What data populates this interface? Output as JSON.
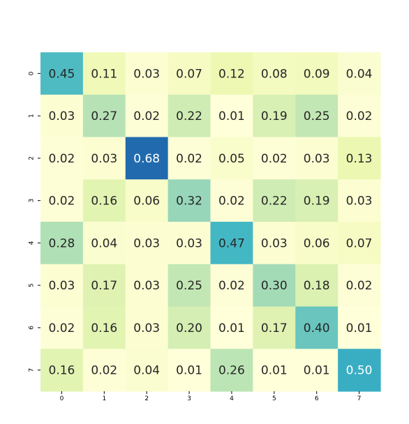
{
  "chart_data": {
    "type": "heatmap",
    "title": "",
    "xlabel": "",
    "ylabel": "",
    "x_labels": [
      "0",
      "1",
      "2",
      "3",
      "4",
      "5",
      "6",
      "7"
    ],
    "y_labels": [
      "0",
      "1",
      "2",
      "3",
      "4",
      "5",
      "6",
      "7"
    ],
    "values": [
      [
        0.45,
        0.11,
        0.03,
        0.07,
        0.12,
        0.08,
        0.09,
        0.04
      ],
      [
        0.03,
        0.27,
        0.02,
        0.22,
        0.01,
        0.19,
        0.25,
        0.02
      ],
      [
        0.02,
        0.03,
        0.68,
        0.02,
        0.05,
        0.02,
        0.03,
        0.13
      ],
      [
        0.02,
        0.16,
        0.06,
        0.32,
        0.02,
        0.22,
        0.19,
        0.03
      ],
      [
        0.28,
        0.04,
        0.03,
        0.03,
        0.47,
        0.03,
        0.06,
        0.07
      ],
      [
        0.03,
        0.17,
        0.03,
        0.25,
        0.02,
        0.3,
        0.18,
        0.02
      ],
      [
        0.02,
        0.16,
        0.03,
        0.2,
        0.01,
        0.17,
        0.4,
        0.01
      ],
      [
        0.16,
        0.02,
        0.04,
        0.01,
        0.26,
        0.01,
        0.01,
        0.5
      ]
    ],
    "value_format": "2-decimal",
    "colormap": "YlGnBu",
    "color_range": [
      0.01,
      0.68
    ],
    "colorbar": false,
    "grid": false,
    "annotations": true
  }
}
